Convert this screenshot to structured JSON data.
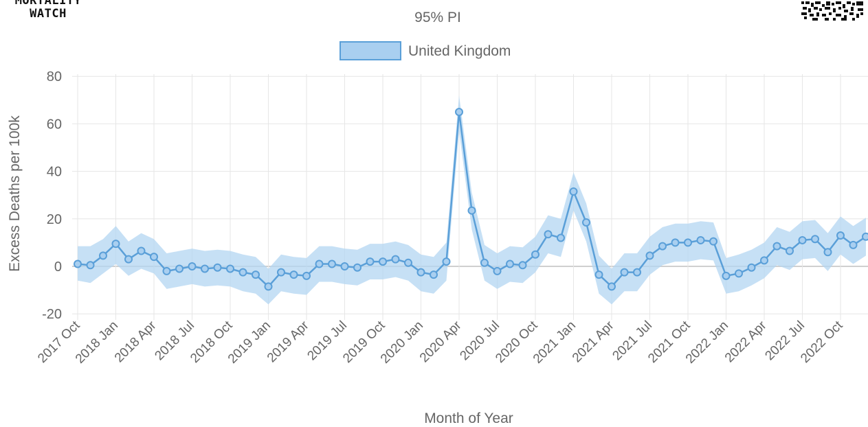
{
  "logo": {
    "line1": "MORTALITY",
    "line2": "WATCH"
  },
  "qr_icon": "qr-code-icon",
  "chart_data": {
    "type": "line",
    "title": "95% PI",
    "xlabel": "Month of Year",
    "ylabel": "Excess Deaths per 100k",
    "ylim": [
      -20,
      80
    ],
    "yticks": [
      -20,
      0,
      20,
      40,
      60,
      80
    ],
    "grid": true,
    "legend_position": "top-center",
    "x": [
      "2017 Oct",
      "2017 Nov",
      "2017 Dec",
      "2018 Jan",
      "2018 Feb",
      "2018 Mar",
      "2018 Apr",
      "2018 May",
      "2018 Jun",
      "2018 Jul",
      "2018 Aug",
      "2018 Sep",
      "2018 Oct",
      "2018 Nov",
      "2018 Dec",
      "2019 Jan",
      "2019 Feb",
      "2019 Mar",
      "2019 Apr",
      "2019 May",
      "2019 Jun",
      "2019 Jul",
      "2019 Aug",
      "2019 Sep",
      "2019 Oct",
      "2019 Nov",
      "2019 Dec",
      "2020 Jan",
      "2020 Feb",
      "2020 Mar",
      "2020 Apr",
      "2020 May",
      "2020 Jun",
      "2020 Jul",
      "2020 Aug",
      "2020 Sep",
      "2020 Oct",
      "2020 Nov",
      "2020 Dec",
      "2021 Jan",
      "2021 Feb",
      "2021 Mar",
      "2021 Apr",
      "2021 May",
      "2021 Jun",
      "2021 Jul",
      "2021 Aug",
      "2021 Sep",
      "2021 Oct",
      "2021 Nov",
      "2021 Dec",
      "2022 Jan",
      "2022 Feb",
      "2022 Mar",
      "2022 Apr",
      "2022 May",
      "2022 Jun",
      "2022 Jul",
      "2022 Aug",
      "2022 Sep",
      "2022 Oct",
      "2022 Nov",
      "2022 Dec"
    ],
    "xtick_labels": [
      "2017 Oct",
      "2018 Jan",
      "2018 Apr",
      "2018 Jul",
      "2018 Oct",
      "2019 Jan",
      "2019 Apr",
      "2019 Jul",
      "2019 Oct",
      "2020 Jan",
      "2020 Apr",
      "2020 Jul",
      "2020 Oct",
      "2021 Jan",
      "2021 Apr",
      "2021 Jul",
      "2021 Oct",
      "2022 Jan",
      "2022 Apr",
      "2022 Jul",
      "2022 Oct"
    ],
    "series": [
      {
        "name": "United Kingdom",
        "color": "#5a9fd8",
        "band_color": "#b3d5f2",
        "values": [
          1,
          0.5,
          4.5,
          9.5,
          3,
          6.5,
          4,
          -2,
          -1,
          0,
          -1,
          -0.5,
          -1,
          -2.5,
          -3.5,
          -8.5,
          -2.5,
          -3.5,
          -4,
          1,
          1,
          0,
          -0.5,
          2,
          2,
          3,
          1.5,
          -2.5,
          -3.5,
          2,
          65,
          23.5,
          1.5,
          -2,
          1,
          0.5,
          5,
          13.5,
          12,
          31.5,
          18.5,
          -3.5,
          -8.5,
          -2.5,
          -2.5,
          4.5,
          8.5,
          10,
          10,
          11,
          10.5,
          -4,
          -3,
          -0.5,
          2.5,
          8.5,
          6.5,
          11,
          11.5,
          6,
          13,
          9,
          12.5
        ],
        "lower": [
          -6,
          -7,
          -3,
          1,
          -4,
          -1,
          -3,
          -9.5,
          -8.5,
          -7.5,
          -8.5,
          -8,
          -8.5,
          -10.5,
          -11.5,
          -16,
          -10.5,
          -11.5,
          -12,
          -6.5,
          -6.5,
          -7.5,
          -8,
          -5.5,
          -5.5,
          -4.5,
          -6,
          -10.5,
          -11.5,
          -6,
          57,
          15.5,
          -6,
          -9.5,
          -6.5,
          -7,
          -2.5,
          5.5,
          4,
          23.5,
          10.5,
          -11.5,
          -16,
          -10.5,
          -10.5,
          -3.5,
          0.5,
          2,
          2,
          3,
          2.5,
          -11.5,
          -10.5,
          -8,
          -5,
          0.5,
          -1.5,
          3,
          3.5,
          -2,
          5,
          1,
          4.5
        ],
        "upper": [
          8.5,
          8.5,
          11.5,
          17,
          10.5,
          14,
          11.5,
          5.5,
          6.5,
          7.5,
          6.5,
          7,
          6.5,
          5,
          4,
          -1,
          5,
          4,
          3.5,
          8.5,
          8.5,
          7.5,
          7,
          9.5,
          9.5,
          10.5,
          9,
          5,
          4,
          10,
          72,
          31,
          9,
          5.5,
          8.5,
          8,
          12.5,
          21.5,
          20,
          39.5,
          26.5,
          4.5,
          -1,
          5.5,
          5.5,
          12.5,
          16.5,
          18,
          18,
          19,
          18.5,
          3.5,
          5,
          7,
          10,
          16.5,
          14.5,
          19,
          19.5,
          14,
          21,
          17,
          20.5
        ]
      }
    ]
  }
}
